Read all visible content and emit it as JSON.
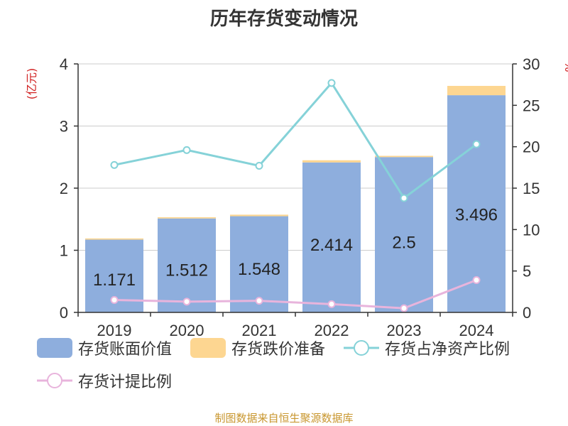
{
  "chart_data": {
    "type": "bar",
    "title": "历年存货变动情况",
    "left_axis_label": "(亿元)",
    "right_axis_label": "%",
    "categories": [
      "2019",
      "2020",
      "2021",
      "2022",
      "2023",
      "2024"
    ],
    "left_ylim": [
      0,
      4
    ],
    "left_ticks": [
      "0",
      "1",
      "2",
      "3",
      "4"
    ],
    "right_ylim": [
      0,
      30
    ],
    "right_ticks": [
      "0",
      "5",
      "10",
      "15",
      "20",
      "25",
      "30"
    ],
    "grid": true,
    "series": [
      {
        "name": "存货账面价值",
        "kind": "bar-stack",
        "axis": "left",
        "color": "#8eaedd",
        "values": [
          1.171,
          1.512,
          1.548,
          2.414,
          2.5,
          3.496
        ],
        "labels": [
          "1.171",
          "1.512",
          "1.548",
          "2.414",
          "2.5",
          "3.496"
        ]
      },
      {
        "name": "存货跌价准备",
        "kind": "bar-stack",
        "axis": "left",
        "color": "#fdd691",
        "values": [
          0.02,
          0.02,
          0.025,
          0.035,
          0.02,
          0.15
        ]
      },
      {
        "name": "存货占净资产比例",
        "kind": "line",
        "axis": "right",
        "color": "#85d2d8",
        "values": [
          17.8,
          19.6,
          17.7,
          27.7,
          13.8,
          20.3
        ]
      },
      {
        "name": "存货计提比例",
        "kind": "line",
        "axis": "right",
        "color": "#e8b4dc",
        "values": [
          1.5,
          1.3,
          1.4,
          1.0,
          0.5,
          3.9
        ]
      }
    ],
    "legend_position": "bottom"
  },
  "source_text": "制图数据来自恒生聚源数据库"
}
